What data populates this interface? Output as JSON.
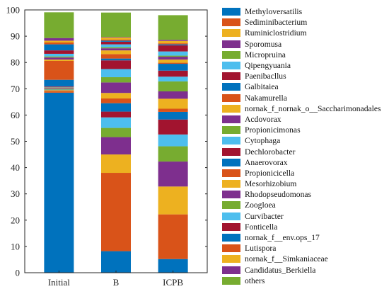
{
  "chart_data": {
    "type": "bar",
    "stacked": true,
    "title": "",
    "xlabel": "",
    "ylabel": "",
    "ylim": [
      0,
      100
    ],
    "yticks": [
      0,
      10,
      20,
      30,
      40,
      50,
      60,
      70,
      80,
      90,
      100
    ],
    "categories": [
      "Initial",
      "B",
      "ICPB"
    ],
    "legend_position": "right",
    "grid": false,
    "series": [
      {
        "name": "Methyloversatilis",
        "color": "#0072BD",
        "values": [
          68.5,
          8.2,
          5.2
        ]
      },
      {
        "name": "Sediminibacterium",
        "color": "#D95319",
        "values": [
          0.6,
          29.8,
          17.0
        ]
      },
      {
        "name": "Ruminiclostridium",
        "color": "#EDB120",
        "values": [
          0.3,
          7.0,
          10.6
        ]
      },
      {
        "name": "Sporomusa",
        "color": "#7E2F8E",
        "values": [
          0.1,
          6.6,
          9.5
        ]
      },
      {
        "name": "Micropruina",
        "color": "#77AC30",
        "values": [
          0.2,
          3.5,
          5.8
        ]
      },
      {
        "name": "Qipengyuania",
        "color": "#4DBEEE",
        "values": [
          0.2,
          4.0,
          4.5
        ]
      },
      {
        "name": "Paenibacllus",
        "color": "#A2142F",
        "values": [
          0.2,
          2.2,
          5.7
        ]
      },
      {
        "name": "Galbitaiea",
        "color": "#0072BD",
        "values": [
          0.1,
          3.2,
          2.9
        ]
      },
      {
        "name": "Nakamurella",
        "color": "#D95319",
        "values": [
          0.1,
          1.8,
          1.2
        ]
      },
      {
        "name": "nornak_f_nornak_o__Saccharimonadales",
        "color": "#EDB120",
        "values": [
          0.1,
          2.1,
          3.8
        ]
      },
      {
        "name": "Acdovorax",
        "color": "#7E2F8E",
        "values": [
          0.1,
          4.0,
          2.8
        ]
      },
      {
        "name": "Propionicimonas",
        "color": "#77AC30",
        "values": [
          0.1,
          2.0,
          3.8
        ]
      },
      {
        "name": "Cytophaga",
        "color": "#4DBEEE",
        "values": [
          0.1,
          3.1,
          1.8
        ]
      },
      {
        "name": "Dechlorobacter",
        "color": "#A2142F",
        "values": [
          0.2,
          3.3,
          2.3
        ]
      },
      {
        "name": "Anaerovorax",
        "color": "#0072BD",
        "values": [
          2.5,
          0.7,
          2.6
        ]
      },
      {
        "name": "Propionicicella",
        "color": "#D95319",
        "values": [
          7.2,
          1.7,
          0.4
        ]
      },
      {
        "name": "Mesorhizobium",
        "color": "#EDB120",
        "values": [
          0.5,
          1.4,
          1.2
        ]
      },
      {
        "name": "Rhodopseudomonas",
        "color": "#7E2F8E",
        "values": [
          0.8,
          0.8,
          1.1
        ]
      },
      {
        "name": "Zoogloea",
        "color": "#77AC30",
        "values": [
          0.4,
          0.4,
          0.4
        ]
      },
      {
        "name": "Curvibacter",
        "color": "#4DBEEE",
        "values": [
          1.0,
          1.1,
          1.6
        ]
      },
      {
        "name": "Fonticella",
        "color": "#A2142F",
        "values": [
          1.3,
          1.0,
          2.3
        ]
      },
      {
        "name": "nornak_f__env.ops_17",
        "color": "#0072BD",
        "values": [
          2.3,
          0.4,
          0.4
        ]
      },
      {
        "name": "Lutispora",
        "color": "#D95319",
        "values": [
          0.7,
          0.4,
          0.4
        ]
      },
      {
        "name": "nornak_f__Simkaniaceae",
        "color": "#EDB120",
        "values": [
          0.7,
          0.8,
          0.9
        ]
      },
      {
        "name": "Candidatus_Berkiella",
        "color": "#7E2F8E",
        "values": [
          1.0,
          0.2,
          0.4
        ]
      },
      {
        "name": "others",
        "color": "#77AC30",
        "values": [
          9.8,
          9.3,
          9.4
        ]
      }
    ]
  }
}
